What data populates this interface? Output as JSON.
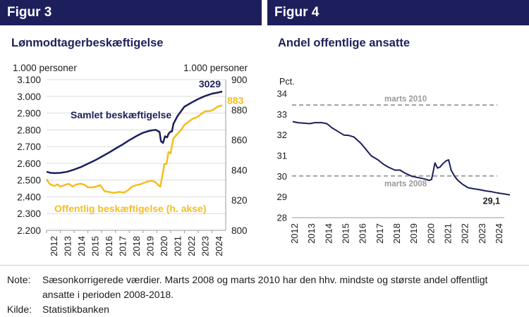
{
  "figures": [
    {
      "label": "Figur 3",
      "title": "Lønmodtagerbeskæftigelse"
    },
    {
      "label": "Figur 4",
      "title": "Andel offentlige ansatte"
    }
  ],
  "colors": {
    "navy": "#1d1f5c",
    "orange": "#f5bd1f",
    "grid": "#dcdcdc",
    "dashed": "#a0a0a0"
  },
  "notes": {
    "note_label": "Note:",
    "note_text": "Sæsonkorrigerede værdier. Marts 2008 og marts 2010 har den hhv. mindste og største andel offentligt ansatte i perioden 2008-2018.",
    "source_label": "Kilde:",
    "source_text": "Statistikbanken"
  },
  "chart_data": [
    {
      "type": "line",
      "title": "Lønmodtagerbeskæftigelse",
      "ylabel_left": "1.000 personer",
      "ylabel_right": "1.000 personer",
      "ylim_left": [
        2200,
        3100
      ],
      "yticks_left": [
        "2.200",
        "2.300",
        "2.400",
        "2.500",
        "2.600",
        "2.700",
        "2.800",
        "2.900",
        "3.000",
        "3.100"
      ],
      "ylim_right": [
        800,
        900
      ],
      "yticks_right": [
        "800",
        "820",
        "840",
        "860",
        "880",
        "900"
      ],
      "x_ticks": [
        "2012",
        "2013",
        "2014",
        "2015",
        "2016",
        "2017",
        "2018",
        "2019",
        "2020",
        "2021",
        "2022",
        "2023",
        "2024"
      ],
      "xlim": [
        2012,
        2025
      ],
      "grid": true,
      "series": [
        {
          "name": "Samlet beskæftigelse",
          "axis": "left",
          "end_label": "3029",
          "points": [
            [
              2012.0,
              2550
            ],
            [
              2012.3,
              2543
            ],
            [
              2012.6,
              2542
            ],
            [
              2013.0,
              2543
            ],
            [
              2013.5,
              2550
            ],
            [
              2014.0,
              2563
            ],
            [
              2014.5,
              2578
            ],
            [
              2015.0,
              2598
            ],
            [
              2015.5,
              2617
            ],
            [
              2016.0,
              2640
            ],
            [
              2016.5,
              2663
            ],
            [
              2017.0,
              2688
            ],
            [
              2017.5,
              2712
            ],
            [
              2018.0,
              2738
            ],
            [
              2018.5,
              2762
            ],
            [
              2019.0,
              2783
            ],
            [
              2019.5,
              2795
            ],
            [
              2019.9,
              2800
            ],
            [
              2020.2,
              2788
            ],
            [
              2020.3,
              2732
            ],
            [
              2020.45,
              2722
            ],
            [
              2020.6,
              2762
            ],
            [
              2020.75,
              2755
            ],
            [
              2020.85,
              2776
            ],
            [
              2021.0,
              2790
            ],
            [
              2021.1,
              2790
            ],
            [
              2021.2,
              2835
            ],
            [
              2021.5,
              2882
            ],
            [
              2022.0,
              2938
            ],
            [
              2022.5,
              2962
            ],
            [
              2023.0,
              2984
            ],
            [
              2023.5,
              3002
            ],
            [
              2024.0,
              3016
            ],
            [
              2024.5,
              3024
            ],
            [
              2024.75,
              3029
            ]
          ]
        },
        {
          "name": "Offentlig beskæftigelse (h. akse)",
          "axis": "right",
          "end_label": "883",
          "points": [
            [
              2012.0,
              834
            ],
            [
              2012.2,
              831
            ],
            [
              2012.4,
              830
            ],
            [
              2012.6,
              829.5
            ],
            [
              2012.8,
              830.5
            ],
            [
              2013.0,
              829
            ],
            [
              2013.3,
              830
            ],
            [
              2013.6,
              831
            ],
            [
              2013.9,
              829
            ],
            [
              2014.2,
              830.5
            ],
            [
              2014.5,
              831
            ],
            [
              2014.8,
              830
            ],
            [
              2015.0,
              828.5
            ],
            [
              2015.3,
              828.5
            ],
            [
              2015.6,
              829
            ],
            [
              2015.9,
              830
            ],
            [
              2016.2,
              826
            ],
            [
              2016.5,
              825.5
            ],
            [
              2016.8,
              825
            ],
            [
              2017.0,
              825
            ],
            [
              2017.3,
              825.5
            ],
            [
              2017.6,
              825
            ],
            [
              2017.9,
              826.5
            ],
            [
              2018.2,
              829
            ],
            [
              2018.5,
              830
            ],
            [
              2018.8,
              830.5
            ],
            [
              2019.2,
              832
            ],
            [
              2019.6,
              833
            ],
            [
              2019.9,
              832
            ],
            [
              2020.1,
              830
            ],
            [
              2020.25,
              829
            ],
            [
              2020.4,
              836
            ],
            [
              2020.55,
              844
            ],
            [
              2020.7,
              844
            ],
            [
              2020.85,
              852
            ],
            [
              2021.0,
              851
            ],
            [
              2021.2,
              861
            ],
            [
              2021.4,
              863
            ],
            [
              2021.6,
              865
            ],
            [
              2021.8,
              867
            ],
            [
              2022.0,
              870
            ],
            [
              2022.3,
              872
            ],
            [
              2022.6,
              874
            ],
            [
              2022.9,
              875
            ],
            [
              2023.2,
              877
            ],
            [
              2023.5,
              879
            ],
            [
              2023.8,
              879
            ],
            [
              2024.1,
              880
            ],
            [
              2024.4,
              882
            ],
            [
              2024.75,
              883
            ]
          ]
        }
      ]
    },
    {
      "type": "line",
      "title": "Andel offentlige ansatte",
      "ylabel": "Pct.",
      "ylim": [
        28,
        34
      ],
      "yticks": [
        "28",
        "29",
        "30",
        "31",
        "32",
        "33",
        "34"
      ],
      "x_ticks": [
        "2012",
        "2013",
        "2014",
        "2015",
        "2016",
        "2017",
        "2018",
        "2019",
        "2020",
        "2021",
        "2022",
        "2023",
        "2024"
      ],
      "xlim": [
        2012,
        2025
      ],
      "grid": false,
      "reference_lines": [
        {
          "label": "marts 2010",
          "value": 33.45
        },
        {
          "label": "marts 2008",
          "value": 30.02
        }
      ],
      "series": [
        {
          "name": "",
          "end_label": "29,1",
          "points": [
            [
              2012.0,
              32.65
            ],
            [
              2012.3,
              32.6
            ],
            [
              2012.6,
              32.58
            ],
            [
              2013.0,
              32.55
            ],
            [
              2013.3,
              32.6
            ],
            [
              2013.7,
              32.6
            ],
            [
              2014.0,
              32.55
            ],
            [
              2014.3,
              32.35
            ],
            [
              2014.6,
              32.2
            ],
            [
              2015.0,
              32.0
            ],
            [
              2015.3,
              31.98
            ],
            [
              2015.6,
              31.9
            ],
            [
              2016.0,
              31.6
            ],
            [
              2016.3,
              31.3
            ],
            [
              2016.6,
              31.0
            ],
            [
              2017.0,
              30.8
            ],
            [
              2017.3,
              30.6
            ],
            [
              2017.6,
              30.45
            ],
            [
              2018.0,
              30.3
            ],
            [
              2018.3,
              30.3
            ],
            [
              2018.6,
              30.15
            ],
            [
              2019.0,
              30.0
            ],
            [
              2019.3,
              29.95
            ],
            [
              2019.6,
              29.9
            ],
            [
              2019.85,
              29.85
            ],
            [
              2020.0,
              29.8
            ],
            [
              2020.15,
              29.85
            ],
            [
              2020.3,
              30.45
            ],
            [
              2020.35,
              30.65
            ],
            [
              2020.5,
              30.4
            ],
            [
              2020.65,
              30.45
            ],
            [
              2020.8,
              30.6
            ],
            [
              2021.0,
              30.75
            ],
            [
              2021.15,
              30.8
            ],
            [
              2021.3,
              30.3
            ],
            [
              2021.5,
              30.0
            ],
            [
              2021.7,
              29.8
            ],
            [
              2022.0,
              29.6
            ],
            [
              2022.3,
              29.45
            ],
            [
              2022.6,
              29.4
            ],
            [
              2023.0,
              29.35
            ],
            [
              2023.3,
              29.3
            ],
            [
              2023.7,
              29.25
            ],
            [
              2024.0,
              29.2
            ],
            [
              2024.4,
              29.15
            ],
            [
              2024.75,
              29.1
            ]
          ]
        }
      ]
    }
  ]
}
